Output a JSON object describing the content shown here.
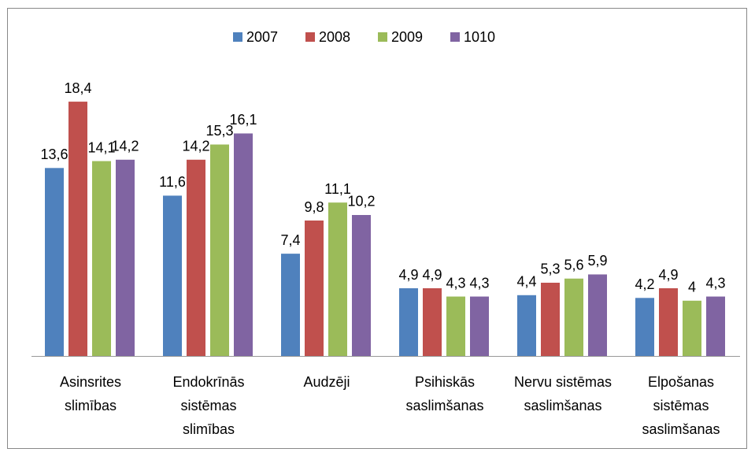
{
  "chart_data": {
    "type": "bar",
    "categories": [
      "Asinsrites slimības",
      "Endokrīnās sistēmas slimības",
      "Audzēji",
      "Psihiskās saslimšanas",
      "Nervu sistēmas saslimšanas",
      "Elpošanas sistēmas saslimšanas"
    ],
    "series": [
      {
        "name": "2007",
        "color": "#4f81bd",
        "values": [
          13.6,
          11.6,
          7.4,
          4.9,
          4.4,
          4.2
        ],
        "value_labels": [
          "13,6",
          "11,6",
          "7,4",
          "4,9",
          "4,4",
          "4,2"
        ]
      },
      {
        "name": "2008",
        "color": "#c0504d",
        "values": [
          18.4,
          14.2,
          9.8,
          4.9,
          5.3,
          4.9
        ],
        "value_labels": [
          "18,4",
          "14,2",
          "9,8",
          "4,9",
          "5,3",
          "4,9"
        ]
      },
      {
        "name": "2009",
        "color": "#9bbb59",
        "values": [
          14.1,
          15.3,
          11.1,
          4.3,
          5.6,
          4
        ],
        "value_labels": [
          "14,1",
          "15,3",
          "11,1",
          "4,3",
          "5,6",
          "4"
        ]
      },
      {
        "name": "1010",
        "color": "#8064a2",
        "values": [
          14.2,
          16.1,
          10.2,
          4.3,
          5.9,
          4.3
        ],
        "value_labels": [
          "14,2",
          "16,1",
          "10,2",
          "4,3",
          "5,9",
          "4,3"
        ]
      }
    ],
    "ylim": [
      0,
      20
    ],
    "legend": "top"
  }
}
